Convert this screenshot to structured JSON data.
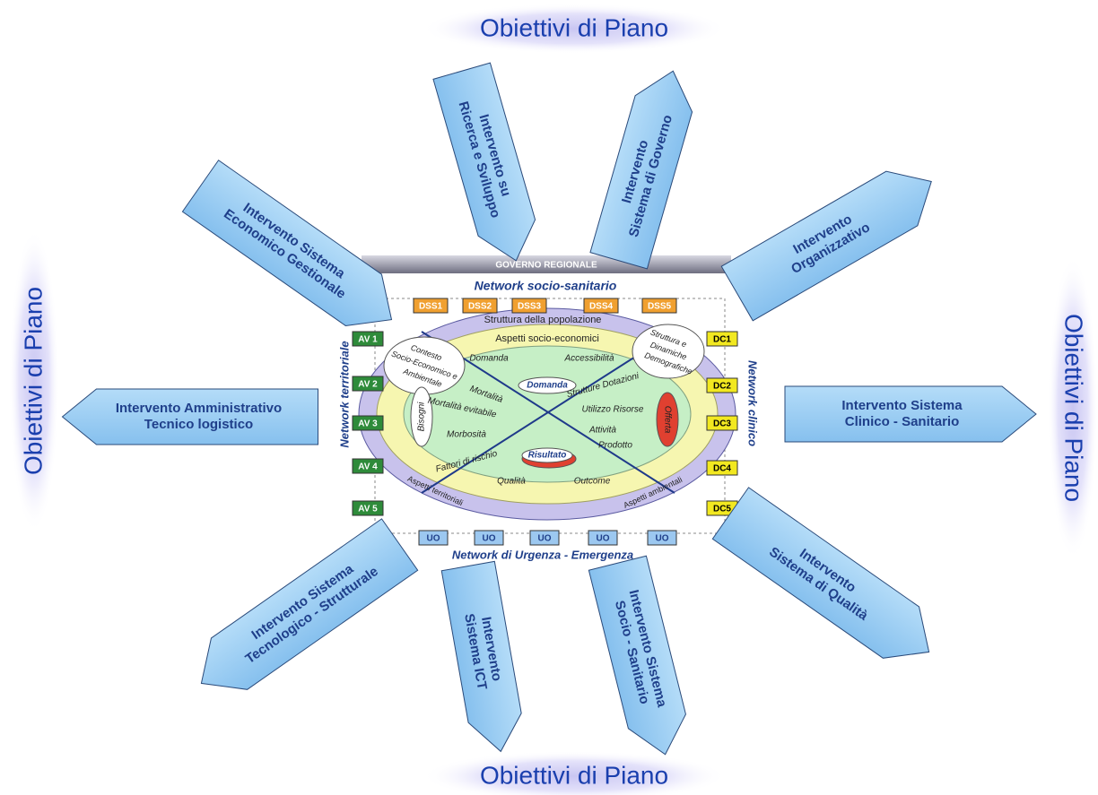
{
  "objectives": [
    "Obiettivi di Piano",
    "Obiettivi di Piano",
    "Obiettivi di Piano",
    "Obiettivi di Piano"
  ],
  "arrows": [
    {
      "lines": [
        "Intervento su",
        "Ricerca e Sviluppo"
      ]
    },
    {
      "lines": [
        "Intervento",
        "Sistema di Governo"
      ]
    },
    {
      "lines": [
        "Intervento",
        "Organizzativo"
      ]
    },
    {
      "lines": [
        "Intervento Sistema",
        "Clinico - Sanitario"
      ]
    },
    {
      "lines": [
        "Intervento",
        "Sistema di Qualità"
      ]
    },
    {
      "lines": [
        "Intervento Sistema",
        "Socio - Sanitario"
      ]
    },
    {
      "lines": [
        "Intervento",
        "Sistema ICT"
      ]
    },
    {
      "lines": [
        "Intervento Sistema",
        "Tecnologico - Strutturale"
      ]
    },
    {
      "lines": [
        "Intervento Amministrativo",
        "Tecnico logistico"
      ]
    },
    {
      "lines": [
        "Intervento Sistema",
        "Economico Gestionale"
      ]
    }
  ],
  "center": {
    "title": "GOVERNO REGIONALE",
    "dss": [
      "DSS1",
      "DSS2",
      "DSS3",
      "DSS4",
      "DSS5"
    ],
    "av": [
      "AV 1",
      "AV 2",
      "AV 3",
      "AV 4",
      "AV 5"
    ],
    "dc": [
      "DC1",
      "DC2",
      "DC3",
      "DC4",
      "DC5"
    ],
    "uo": [
      "UO",
      "UO",
      "UO",
      "UO",
      "UO"
    ],
    "labels": [
      "Network socio-sanitario",
      "Network territoriale",
      "Network clinico",
      "Network di Urgenza - Emergenza",
      "Struttura della popolazione",
      "Aspetti socio-economici",
      "Aspetti territoriali",
      "Aspetti ambientali",
      "Domanda",
      "Accessibilità",
      "Mortalità",
      "Mortalità evitabile",
      "Morbosità",
      "Fattori di rischio",
      "Qualità",
      "Outcome",
      "Strutture Dotazioni",
      "Utilizzo Risorse",
      "Attività",
      "Prodotto",
      "Bisogni",
      "Offerta",
      "Domanda",
      "Risultato",
      "Contesto",
      "Socio-Economico e",
      "Ambientale",
      "Struttura e",
      "Dinamiche",
      "Demografiche"
    ]
  }
}
